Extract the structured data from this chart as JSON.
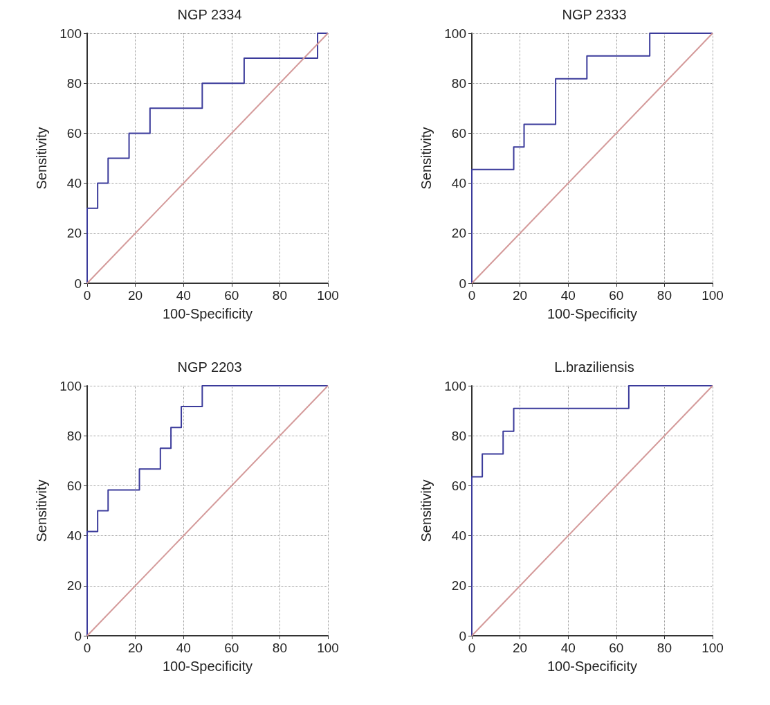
{
  "chart_data": [
    {
      "type": "line",
      "title": "NGP 2334",
      "xlabel": "100-Specificity",
      "ylabel": "Sensitivity",
      "xlim": [
        0,
        100
      ],
      "ylim": [
        0,
        100
      ],
      "xticks": [
        0,
        20,
        40,
        60,
        80,
        100
      ],
      "yticks": [
        0,
        20,
        40,
        60,
        80,
        100
      ],
      "grid": true,
      "marker": "none",
      "line_style": "solid",
      "series": [
        {
          "color": "#3b3b9b",
          "x": [
            0,
            0,
            4.35,
            4.35,
            8.7,
            8.7,
            17.4,
            17.4,
            26.1,
            26.1,
            47.8,
            47.8,
            65.2,
            65.2,
            95.7,
            95.7,
            100
          ],
          "values": [
            0,
            30,
            30,
            40,
            40,
            50,
            50,
            60,
            60,
            70,
            70,
            80,
            80,
            90,
            90,
            100,
            100
          ]
        },
        {
          "color": "#d49a9a",
          "x": [
            0,
            100
          ],
          "values": [
            0,
            100
          ]
        }
      ]
    },
    {
      "type": "line",
      "title": "NGP 2333",
      "xlabel": "100-Specificity",
      "ylabel": "Sensitivity",
      "xlim": [
        0,
        100
      ],
      "ylim": [
        0,
        100
      ],
      "xticks": [
        0,
        20,
        40,
        60,
        80,
        100
      ],
      "yticks": [
        0,
        20,
        40,
        60,
        80,
        100
      ],
      "grid": true,
      "marker": "none",
      "line_style": "solid",
      "series": [
        {
          "color": "#3b3b9b",
          "x": [
            0,
            0,
            17.4,
            17.4,
            21.7,
            21.7,
            34.8,
            34.8,
            47.8,
            47.8,
            73.9,
            73.9,
            100
          ],
          "values": [
            0,
            45.5,
            45.5,
            54.5,
            54.5,
            63.6,
            63.6,
            81.8,
            81.8,
            90.9,
            90.9,
            100,
            100
          ]
        },
        {
          "color": "#d49a9a",
          "x": [
            0,
            100
          ],
          "values": [
            0,
            100
          ]
        }
      ]
    },
    {
      "type": "line",
      "title": "NGP 2203",
      "xlabel": "100-Specificity",
      "ylabel": "Sensitivity",
      "xlim": [
        0,
        100
      ],
      "ylim": [
        0,
        100
      ],
      "xticks": [
        0,
        20,
        40,
        60,
        80,
        100
      ],
      "yticks": [
        0,
        20,
        40,
        60,
        80,
        100
      ],
      "grid": true,
      "marker": "none",
      "line_style": "solid",
      "series": [
        {
          "color": "#3b3b9b",
          "x": [
            0,
            0,
            4.35,
            4.35,
            8.7,
            8.7,
            21.7,
            21.7,
            30.4,
            30.4,
            34.8,
            34.8,
            39.1,
            39.1,
            47.8,
            47.8,
            100
          ],
          "values": [
            0,
            41.7,
            41.7,
            50,
            50,
            58.3,
            58.3,
            66.7,
            66.7,
            75,
            75,
            83.3,
            83.3,
            91.7,
            91.7,
            100,
            100
          ]
        },
        {
          "color": "#d49a9a",
          "x": [
            0,
            100
          ],
          "values": [
            0,
            100
          ]
        }
      ]
    },
    {
      "type": "line",
      "title": "L.braziliensis",
      "xlabel": "100-Specificity",
      "ylabel": "Sensitivity",
      "xlim": [
        0,
        100
      ],
      "ylim": [
        0,
        100
      ],
      "xticks": [
        0,
        20,
        40,
        60,
        80,
        100
      ],
      "yticks": [
        0,
        20,
        40,
        60,
        80,
        100
      ],
      "grid": true,
      "marker": "none",
      "line_style": "solid",
      "series": [
        {
          "color": "#3b3b9b",
          "x": [
            0,
            0,
            4.35,
            4.35,
            13,
            13,
            17.4,
            17.4,
            65.2,
            65.2,
            100
          ],
          "values": [
            0,
            63.6,
            63.6,
            72.7,
            72.7,
            81.8,
            81.8,
            90.9,
            90.9,
            100,
            100
          ]
        },
        {
          "color": "#d49a9a",
          "x": [
            0,
            100
          ],
          "values": [
            0,
            100
          ]
        }
      ]
    }
  ]
}
